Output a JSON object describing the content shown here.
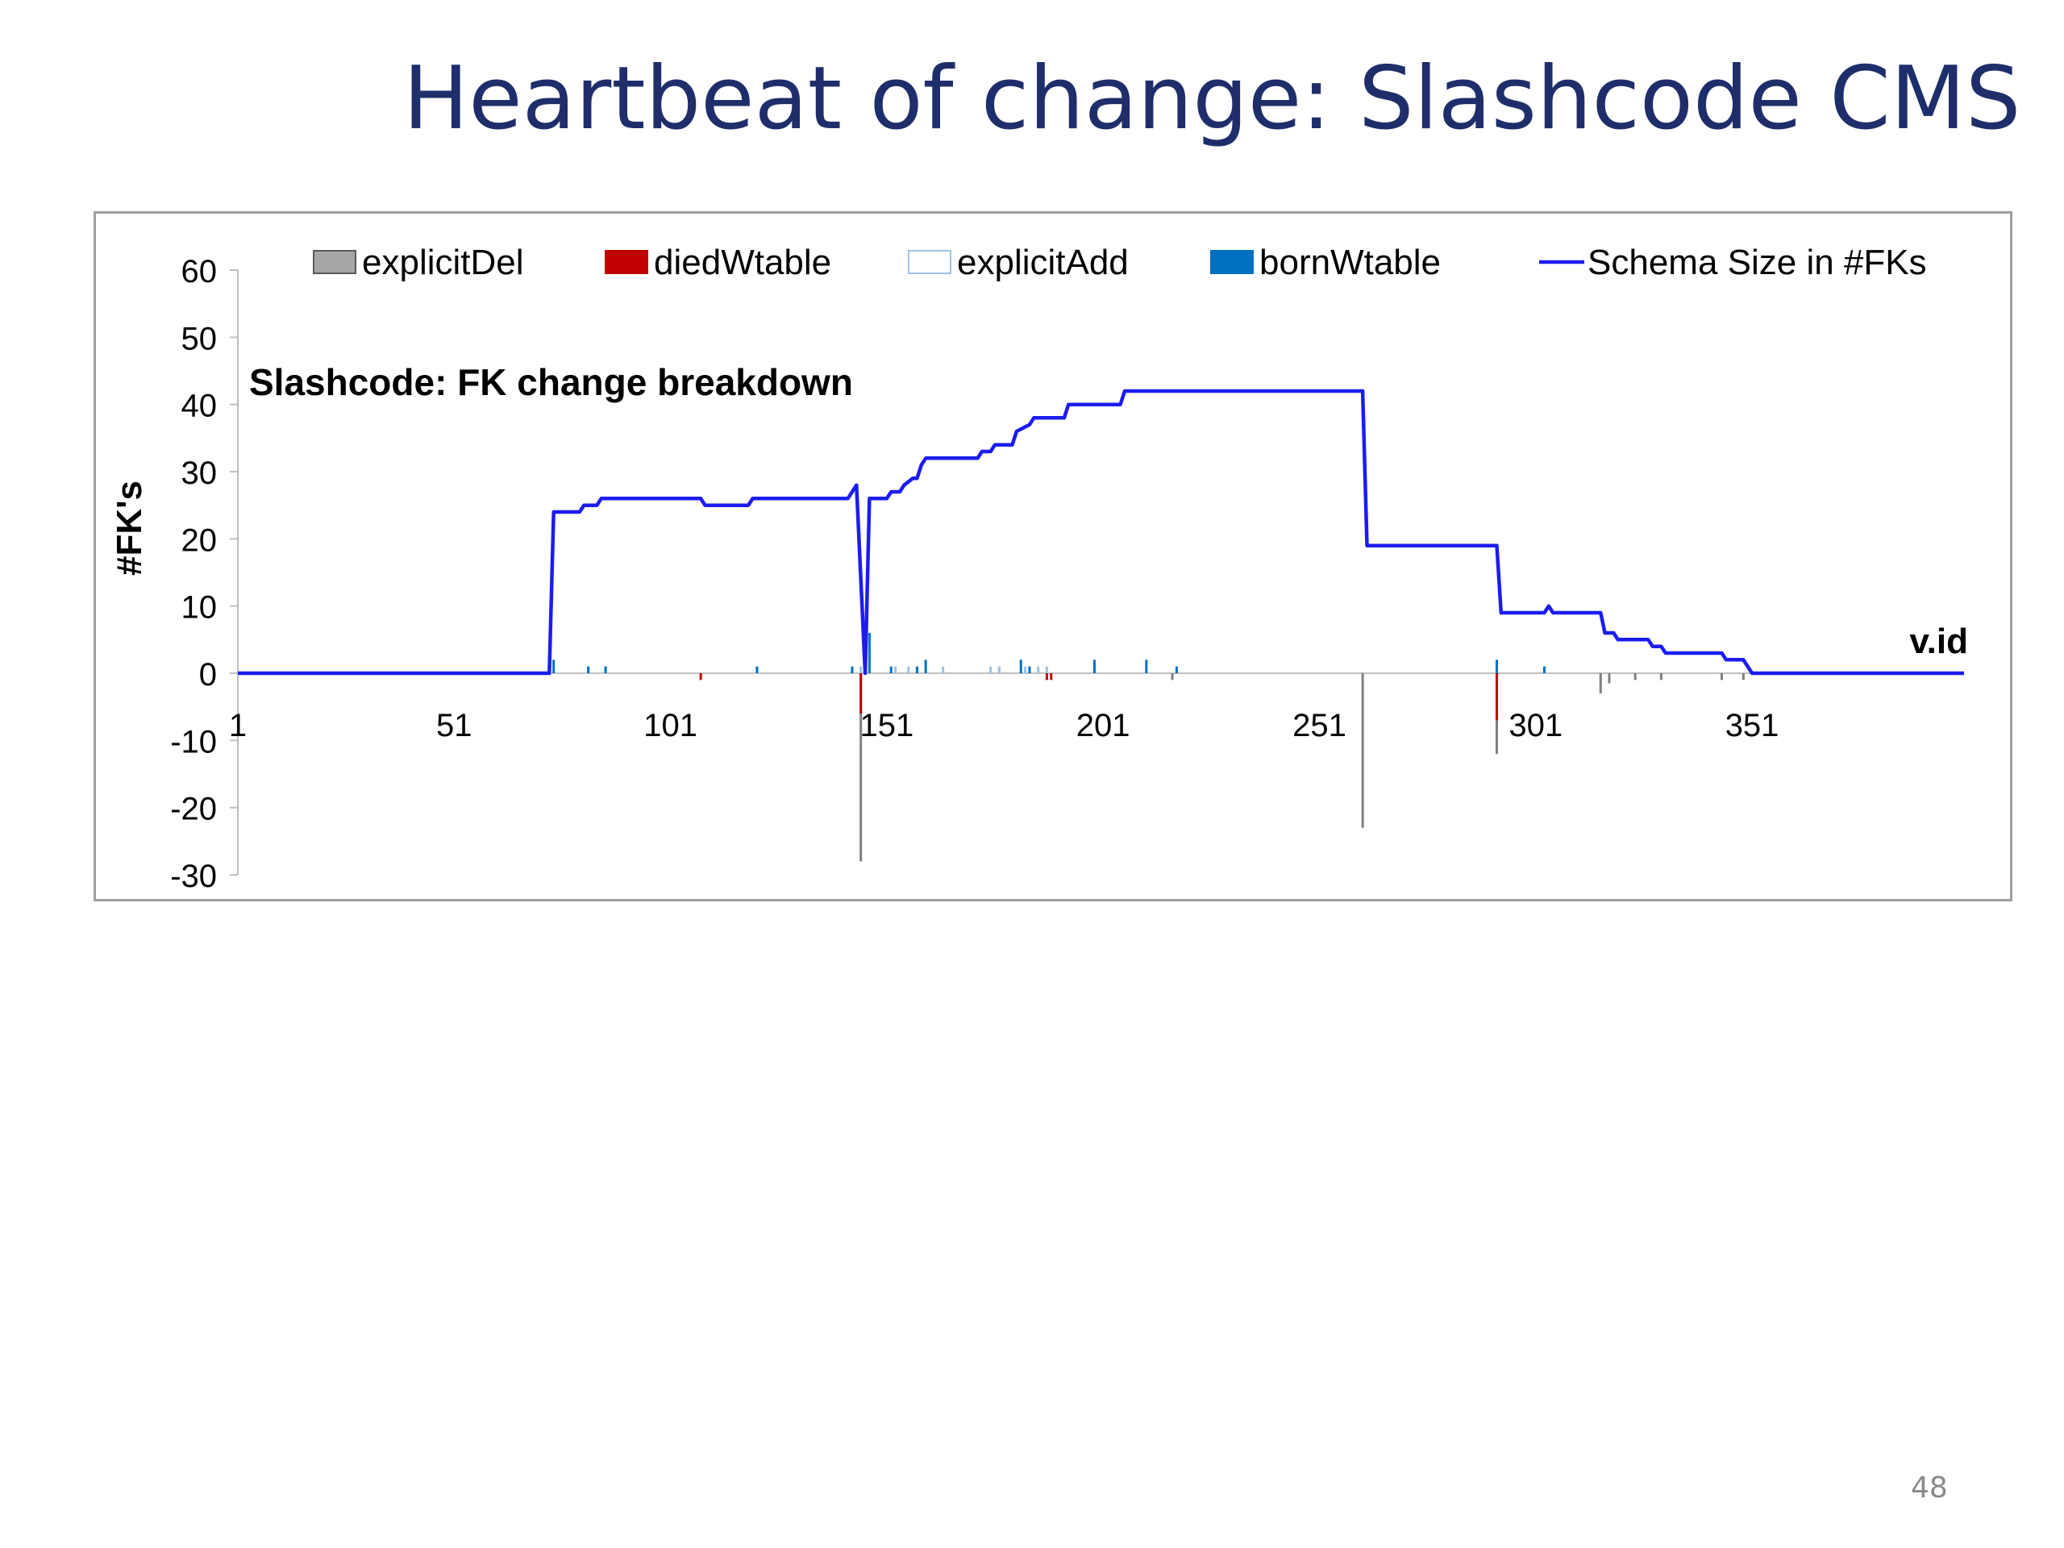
{
  "slide": {
    "title": "Heartbeat of change: Slashcode CMS",
    "page_number": "48"
  },
  "chart_data": {
    "type": "bar",
    "title": "Slashcode: FK change breakdown",
    "xlabel": "v.id",
    "ylabel": "#FK's",
    "ylim": [
      -30,
      60
    ],
    "xlim": [
      1,
      400
    ],
    "yticks": [
      60,
      50,
      40,
      30,
      20,
      10,
      0,
      -10,
      -20,
      -30
    ],
    "xticks": [
      1,
      51,
      101,
      151,
      201,
      251,
      301,
      351
    ],
    "grid": false,
    "legend_position": "top",
    "legend": [
      "explicitDel",
      "diedWtable",
      "explicitAdd",
      "bornWtable",
      "Schema Size in #FKs"
    ],
    "colors": {
      "explicitDel": "#7f7f7f",
      "explicitDel_fill": "#a6a6a6",
      "diedWtable": "#c00000",
      "explicitAdd": "#9dc3e6",
      "bornWtable": "#0070c0",
      "schema": "#1c1cf0"
    },
    "series": [
      {
        "name": "explicitDel",
        "kind": "bar",
        "points": [
          [
            145,
            -28
          ],
          [
            261,
            -23
          ],
          [
            292,
            -12
          ],
          [
            316,
            -3
          ],
          [
            318,
            -1.5
          ],
          [
            324,
            -1
          ],
          [
            330,
            -1
          ],
          [
            344,
            -1
          ],
          [
            349,
            -1
          ],
          [
            217,
            -1
          ]
        ]
      },
      {
        "name": "diedWtable",
        "kind": "bar",
        "points": [
          [
            108,
            -1
          ],
          [
            145,
            -6
          ],
          [
            188,
            -1
          ],
          [
            189,
            -1
          ],
          [
            292,
            -7
          ]
        ]
      },
      {
        "name": "explicitAdd",
        "kind": "bar",
        "points": [
          [
            82,
            1
          ],
          [
            86,
            1
          ],
          [
            145,
            1
          ],
          [
            153,
            1
          ],
          [
            156,
            1
          ],
          [
            164,
            1
          ],
          [
            175,
            1
          ],
          [
            177,
            1
          ],
          [
            183,
            1
          ],
          [
            186,
            1
          ],
          [
            188,
            1
          ],
          [
            303,
            1
          ]
        ]
      },
      {
        "name": "bornWtable",
        "kind": "bar",
        "points": [
          [
            74,
            2
          ],
          [
            82,
            1
          ],
          [
            86,
            1
          ],
          [
            121,
            1
          ],
          [
            143,
            1
          ],
          [
            147,
            6
          ],
          [
            152,
            1
          ],
          [
            158,
            1
          ],
          [
            160,
            2
          ],
          [
            182,
            2
          ],
          [
            184,
            1
          ],
          [
            199,
            2
          ],
          [
            211,
            2
          ],
          [
            218,
            1
          ],
          [
            292,
            2
          ],
          [
            303,
            1
          ]
        ]
      },
      {
        "name": "Schema Size in #FKs",
        "kind": "line",
        "x": [
          1,
          73,
          74,
          80,
          81,
          84,
          85,
          108,
          109,
          119,
          120,
          142,
          143,
          144,
          146,
          147,
          151,
          152,
          154,
          155,
          157,
          158,
          159,
          160,
          172,
          173,
          175,
          176,
          180,
          181,
          184,
          185,
          192,
          193,
          205,
          206,
          261,
          262,
          292,
          293,
          303,
          304,
          305,
          316,
          317,
          319,
          320,
          327,
          328,
          330,
          331,
          344,
          345,
          349,
          350,
          351,
          400
        ],
        "y": [
          0,
          0,
          24,
          24,
          25,
          25,
          26,
          26,
          25,
          25,
          26,
          26,
          27,
          28,
          0,
          26,
          26,
          27,
          27,
          28,
          29,
          29,
          31,
          32,
          32,
          33,
          33,
          34,
          34,
          36,
          37,
          38,
          38,
          40,
          40,
          42,
          42,
          19,
          19,
          9,
          9,
          10,
          9,
          9,
          6,
          6,
          5,
          5,
          4,
          4,
          3,
          3,
          2,
          2,
          1,
          0,
          0
        ]
      }
    ]
  }
}
